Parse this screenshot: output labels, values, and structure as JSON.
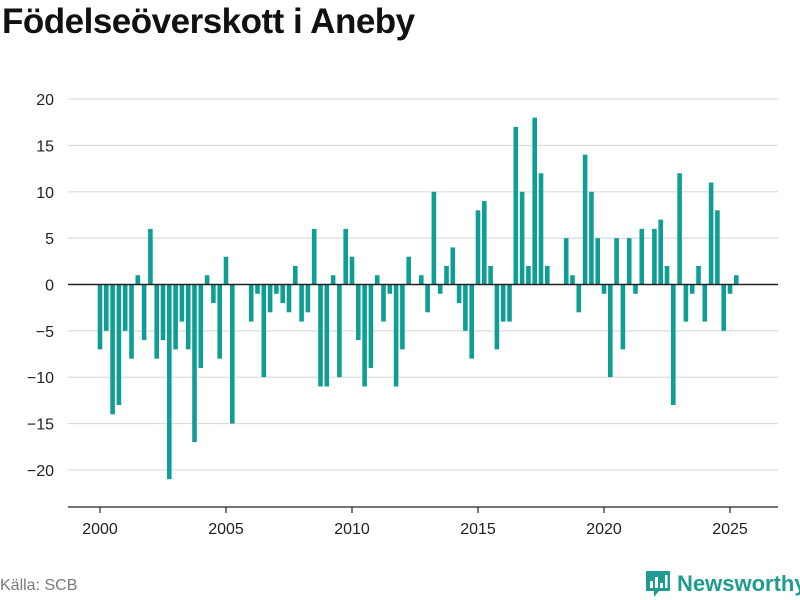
{
  "header": {
    "title": "Födelseöverskott i Aneby"
  },
  "footer": {
    "source": "Källa: SCB",
    "brand": "Newsworthy",
    "brand_icon": "bar-chart-logo-icon"
  },
  "colors": {
    "bar": "#0f9e94",
    "grid": "#dcdcdc",
    "zero": "#222222",
    "brand": "#1f9b8f"
  },
  "chart_data": {
    "type": "bar",
    "title": "Födelseöverskott i Aneby",
    "xlabel": "",
    "ylabel": "",
    "ylim": [
      -24,
      24
    ],
    "xlim": [
      2000,
      2025
    ],
    "grid": true,
    "legend": "none",
    "x_ticks": [
      2000,
      2005,
      2010,
      2015,
      2020,
      2025
    ],
    "y_ticks": [
      -20,
      -15,
      -10,
      -5,
      0,
      5,
      10,
      15,
      20
    ],
    "x": [
      "2000-01",
      "2000-02",
      "2000-03",
      "2000-04",
      "2001-01",
      "2001-02",
      "2001-03",
      "2001-04",
      "2002-01",
      "2002-02",
      "2002-03",
      "2002-04",
      "2003-01",
      "2003-02",
      "2003-03",
      "2003-04",
      "2004-01",
      "2004-02",
      "2004-03",
      "2004-04",
      "2005-01",
      "2005-02",
      "2005-03",
      "2005-04",
      "2006-01",
      "2006-02",
      "2006-03",
      "2006-04",
      "2007-01",
      "2007-02",
      "2007-03",
      "2007-04",
      "2008-01",
      "2008-02",
      "2008-03",
      "2008-04",
      "2009-01",
      "2009-02",
      "2009-03",
      "2009-04",
      "2010-01",
      "2010-02",
      "2010-03",
      "2010-04",
      "2011-01",
      "2011-02",
      "2011-03",
      "2011-04",
      "2012-01",
      "2012-02",
      "2012-03",
      "2012-04",
      "2013-01",
      "2013-02",
      "2013-03",
      "2013-04",
      "2014-01",
      "2014-02",
      "2014-03",
      "2014-04",
      "2015-01",
      "2015-02",
      "2015-03",
      "2015-04",
      "2016-01",
      "2016-02",
      "2016-03",
      "2016-04",
      "2017-01",
      "2017-02",
      "2017-03",
      "2017-04",
      "2018-01",
      "2018-02",
      "2018-03",
      "2018-04",
      "2019-01",
      "2019-02",
      "2019-03",
      "2019-04",
      "2020-01",
      "2020-02",
      "2020-03",
      "2020-04",
      "2021-01",
      "2021-02",
      "2021-03",
      "2021-04",
      "2022-01",
      "2022-02",
      "2022-03",
      "2022-04",
      "2023-01",
      "2023-02",
      "2023-03",
      "2023-04",
      "2024-01",
      "2024-02",
      "2024-03",
      "2024-04",
      "2025-01",
      "2025-02"
    ],
    "values": [
      -7,
      -5,
      -14,
      -13,
      -5,
      -8,
      1,
      -6,
      6,
      -8,
      -6,
      -21,
      -7,
      -4,
      -7,
      -17,
      -9,
      1,
      -2,
      -8,
      3,
      -15,
      0,
      0,
      -4,
      -1,
      -10,
      -3,
      -1,
      -2,
      -3,
      2,
      -4,
      -3,
      6,
      -11,
      -11,
      1,
      -10,
      6,
      3,
      -6,
      -11,
      -9,
      1,
      -4,
      -1,
      -11,
      -7,
      3,
      0,
      1,
      -3,
      10,
      -1,
      2,
      4,
      -2,
      -5,
      -8,
      8,
      9,
      2,
      -7,
      -4,
      -4,
      17,
      10,
      2,
      18,
      12,
      2,
      0,
      0,
      5,
      1,
      -3,
      14,
      10,
      5,
      -1,
      -10,
      5,
      -7,
      5,
      -1,
      6,
      0,
      6,
      7,
      2,
      -13,
      12,
      -4,
      -1,
      2,
      -4,
      11,
      8,
      -5,
      -1,
      1
    ]
  }
}
